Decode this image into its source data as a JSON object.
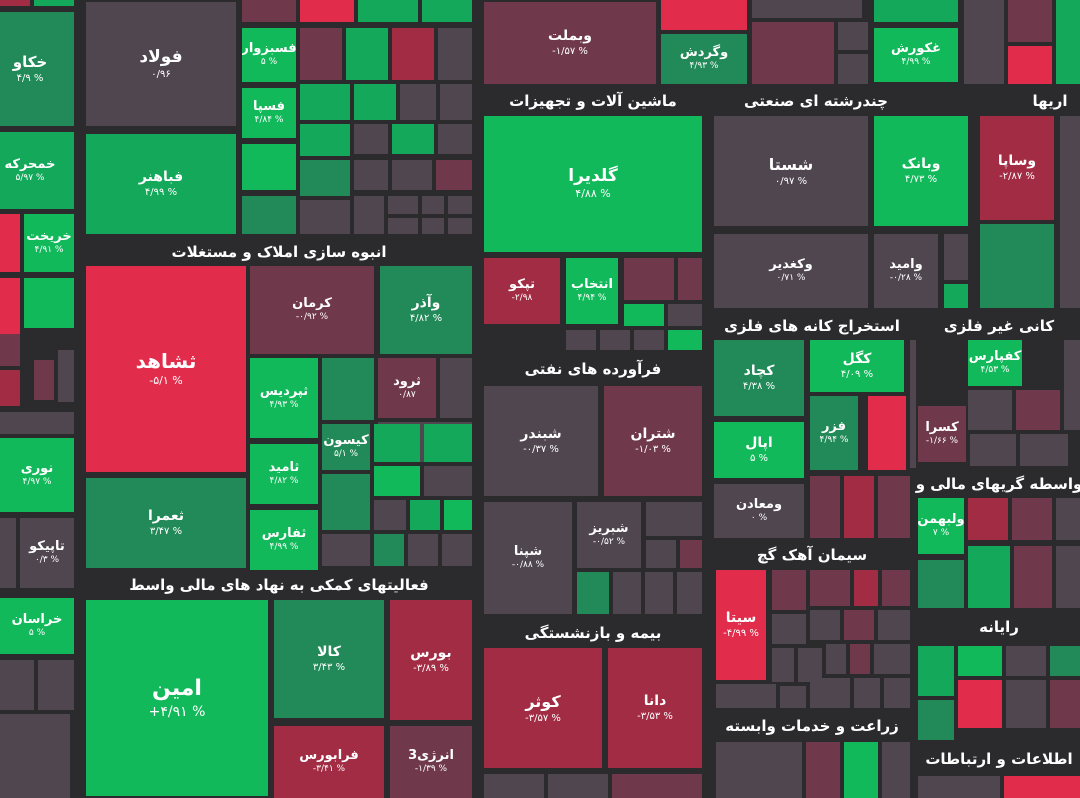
{
  "colors": {
    "background": "#2b2b2e",
    "strong_up": "#12b95b",
    "up": "#14a95a",
    "mild_up": "#228a58",
    "neutral": "#4f4650",
    "mild_down": "#70394b",
    "down": "#a12c43",
    "strong_down": "#e12d4b"
  },
  "sectors": [
    {
      "name": "انبوه سازی املاک و مستغلات"
    },
    {
      "name": "فعالیتهای کمکی به نهاد های مالی واسط"
    },
    {
      "name": "ماشین آلات و تجهیزات"
    },
    {
      "name": "فرآورده های نفتی"
    },
    {
      "name": "بیمه و بازنشستگی"
    },
    {
      "name": "چندرشته ای صنعتی"
    },
    {
      "name": "استخراج کانه های فلزی"
    },
    {
      "name": "کانی غیر فلزی"
    },
    {
      "name": "سیمان آهک گچ"
    },
    {
      "name": "واسطه گریهای مالی و"
    },
    {
      "name": "رایانه"
    },
    {
      "name": "زراعت و خدمات وابسته"
    },
    {
      "name": "اطلاعات و ارتباطات"
    },
    {
      "name": "اریها"
    }
  ],
  "stocks": [
    {
      "symbol": "خکاو",
      "change": "۴/۹ %",
      "tone": "mild_up"
    },
    {
      "symbol": "خمحرکه",
      "change": "۵/۹۷ %",
      "tone": "up"
    },
    {
      "symbol": "خریخت",
      "change": "۴/۹۱ %",
      "tone": "strong_up"
    },
    {
      "symbol": "فولاد",
      "change": "۰/۹۶",
      "tone": "neutral"
    },
    {
      "symbol": "فباهنر",
      "change": "۴/۹۹ %",
      "tone": "up"
    },
    {
      "symbol": "فسبزوار",
      "change": "۵ %",
      "tone": "strong_up"
    },
    {
      "symbol": "فسپا",
      "change": "۴/۸۴ %",
      "tone": "strong_up"
    },
    {
      "symbol": "وبملت",
      "change": "-۱/۵۷ %",
      "tone": "mild_down"
    },
    {
      "symbol": "وگردش",
      "change": "۴/۹۳ %",
      "tone": "mild_up"
    },
    {
      "symbol": "غکورش",
      "change": "۴/۹۹ %",
      "tone": "strong_up"
    },
    {
      "symbol": "گلدیرا",
      "change": "۴/۸۸ %",
      "tone": "strong_up"
    },
    {
      "symbol": "تپکو",
      "change": "-۲/۹۸",
      "tone": "down"
    },
    {
      "symbol": "انتخاب",
      "change": "۴/۹۴ %",
      "tone": "strong_up"
    },
    {
      "symbol": "شبندر",
      "change": "-۰/۳۷ %",
      "tone": "neutral"
    },
    {
      "symbol": "شتران",
      "change": "-۱/۰۳ %",
      "tone": "mild_down"
    },
    {
      "symbol": "شبریز",
      "change": "-۰/۵۲ %",
      "tone": "neutral"
    },
    {
      "symbol": "شپنا",
      "change": "-۰/۸۸ %",
      "tone": "neutral"
    },
    {
      "symbol": "کوثر",
      "change": "-۳/۵۷ %",
      "tone": "down"
    },
    {
      "symbol": "دانا",
      "change": "-۳/۵۳ %",
      "tone": "down"
    },
    {
      "symbol": "شستا",
      "change": "۰/۹۷ %",
      "tone": "neutral"
    },
    {
      "symbol": "وبانک",
      "change": "۴/۷۳ %",
      "tone": "strong_up"
    },
    {
      "symbol": "وکغدیر",
      "change": "۰/۷۱ %",
      "tone": "neutral"
    },
    {
      "symbol": "وامید",
      "change": "-۰/۲۸ %",
      "tone": "neutral"
    },
    {
      "symbol": "وساپا",
      "change": "-۲/۸۷ %",
      "tone": "down"
    },
    {
      "symbol": "کچاد",
      "change": "۴/۳۸ %",
      "tone": "mild_up"
    },
    {
      "symbol": "کگل",
      "change": "۴/۰۹ %",
      "tone": "strong_up"
    },
    {
      "symbol": "فزر",
      "change": "۴/۹۴ %",
      "tone": "mild_up"
    },
    {
      "symbol": "اپال",
      "change": "۵ %",
      "tone": "strong_up"
    },
    {
      "symbol": "ومعادن",
      "change": "۰ %",
      "tone": "neutral"
    },
    {
      "symbol": "کفپارس",
      "change": "۴/۵۳ %",
      "tone": "strong_up"
    },
    {
      "symbol": "کسرا",
      "change": "-۱/۶۶ %",
      "tone": "mild_down"
    },
    {
      "symbol": "سیتا",
      "change": "-۴/۹۹ %",
      "tone": "strong_down"
    },
    {
      "symbol": "ولبهمن",
      "change": "۷ %",
      "tone": "strong_up"
    },
    {
      "symbol": "ثشاهد",
      "change": "-۵/۱ %",
      "tone": "strong_down"
    },
    {
      "symbol": "کرمان",
      "change": "-۰/۹۲ %",
      "tone": "mild_down"
    },
    {
      "symbol": "وآذر",
      "change": "۴/۸۲ %",
      "tone": "mild_up"
    },
    {
      "symbol": "ثپردیس",
      "change": "۴/۹۳ %",
      "tone": "strong_up"
    },
    {
      "symbol": "ثرود",
      "change": "۰/۸۷",
      "tone": "mild_down"
    },
    {
      "symbol": "کیسون",
      "change": "۵/۱ %",
      "tone": "mild_up"
    },
    {
      "symbol": "ثامید",
      "change": "۴/۸۲ %",
      "tone": "strong_up"
    },
    {
      "symbol": "ثعمرا",
      "change": "۳/۴۷ %",
      "tone": "mild_up"
    },
    {
      "symbol": "ثفارس",
      "change": "۴/۹۹ %",
      "tone": "strong_up"
    },
    {
      "symbol": "نوری",
      "change": "۴/۹۷ %",
      "tone": "strong_up"
    },
    {
      "symbol": "تاپیکو",
      "change": "۰/۳ %",
      "tone": "neutral"
    },
    {
      "symbol": "خراسان",
      "change": "۵ %",
      "tone": "strong_up"
    },
    {
      "symbol": "امین",
      "change": "+۴/۹۱ %",
      "tone": "strong_up"
    },
    {
      "symbol": "کالا",
      "change": "۳/۴۳ %",
      "tone": "mild_up"
    },
    {
      "symbol": "بورس",
      "change": "-۳/۸۹ %",
      "tone": "down"
    },
    {
      "symbol": "فرابورس",
      "change": "-۳/۴۱ %",
      "tone": "down"
    },
    {
      "symbol": "انرژی3",
      "change": "-۱/۳۹ %",
      "tone": "mild_down"
    }
  ]
}
